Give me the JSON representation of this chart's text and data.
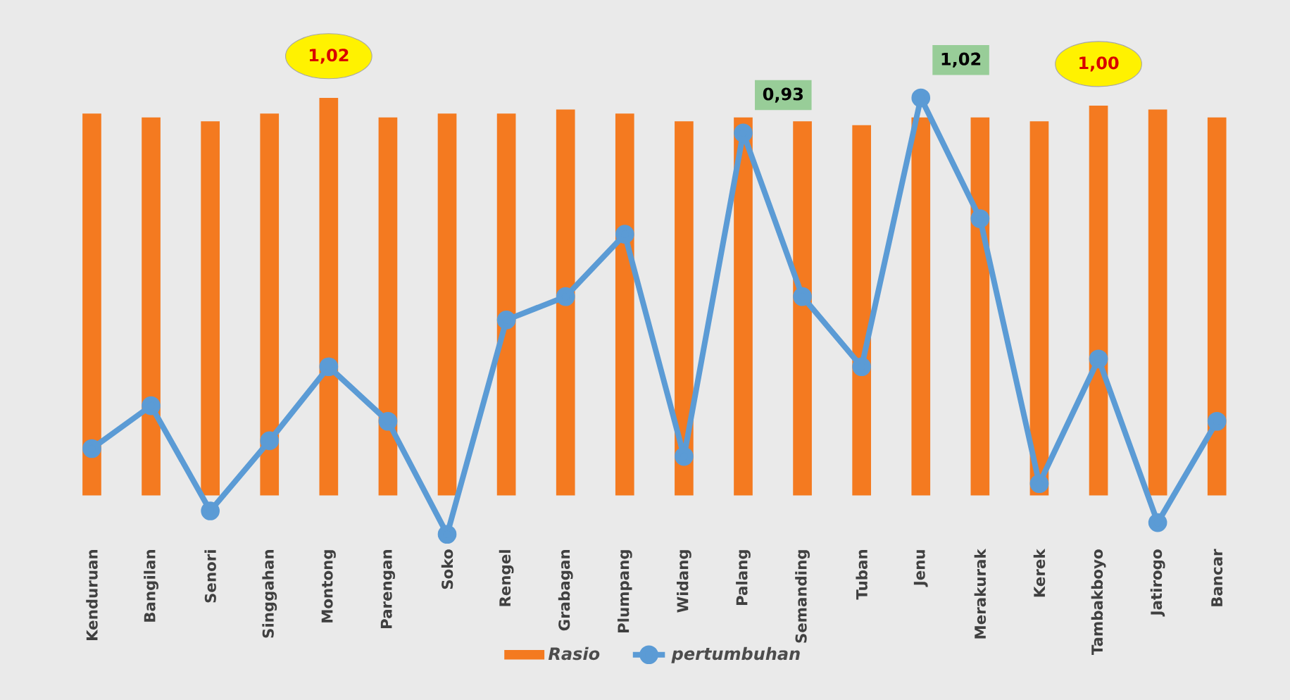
{
  "chart_data": {
    "type": "bar",
    "legend": "bottom",
    "categories": [
      "Kenduruan",
      "Bangilan",
      "Senori",
      "Singgahan",
      "Montong",
      "Parengan",
      "Soko",
      "Rengel",
      "Grabagan",
      "Plumpang",
      "Widang",
      "Palang",
      "Semanding",
      "Tuban",
      "Jenu",
      "Merakurak",
      "Kerek",
      "Tambakboyo",
      "Jatirogo",
      "Bancar"
    ],
    "series": [
      {
        "name": "Rasio",
        "color": "#f47a20",
        "values": [
          0.98,
          0.97,
          0.96,
          0.98,
          1.02,
          0.97,
          0.98,
          0.98,
          0.99,
          0.98,
          0.96,
          0.97,
          0.96,
          0.95,
          0.97,
          0.97,
          0.96,
          1.0,
          0.99,
          0.97
        ],
        "value_labels": [
          null,
          null,
          null,
          null,
          "1,02",
          null,
          null,
          null,
          null,
          null,
          null,
          null,
          null,
          null,
          null,
          null,
          null,
          "1,00",
          null,
          null
        ]
      },
      {
        "name": "pertumbuhan",
        "type": "line",
        "color": "#5b9bd5",
        "marker": "circle",
        "values": [
          0.12,
          0.23,
          -0.04,
          0.14,
          0.33,
          0.19,
          -0.1,
          0.45,
          0.51,
          0.67,
          0.1,
          0.93,
          0.51,
          0.33,
          1.02,
          0.71,
          0.03,
          0.35,
          -0.07,
          0.19
        ],
        "value_labels": [
          null,
          null,
          null,
          null,
          null,
          null,
          null,
          null,
          null,
          null,
          null,
          "0,93",
          null,
          null,
          "1,02",
          null,
          null,
          null,
          null,
          null
        ]
      }
    ]
  }
}
